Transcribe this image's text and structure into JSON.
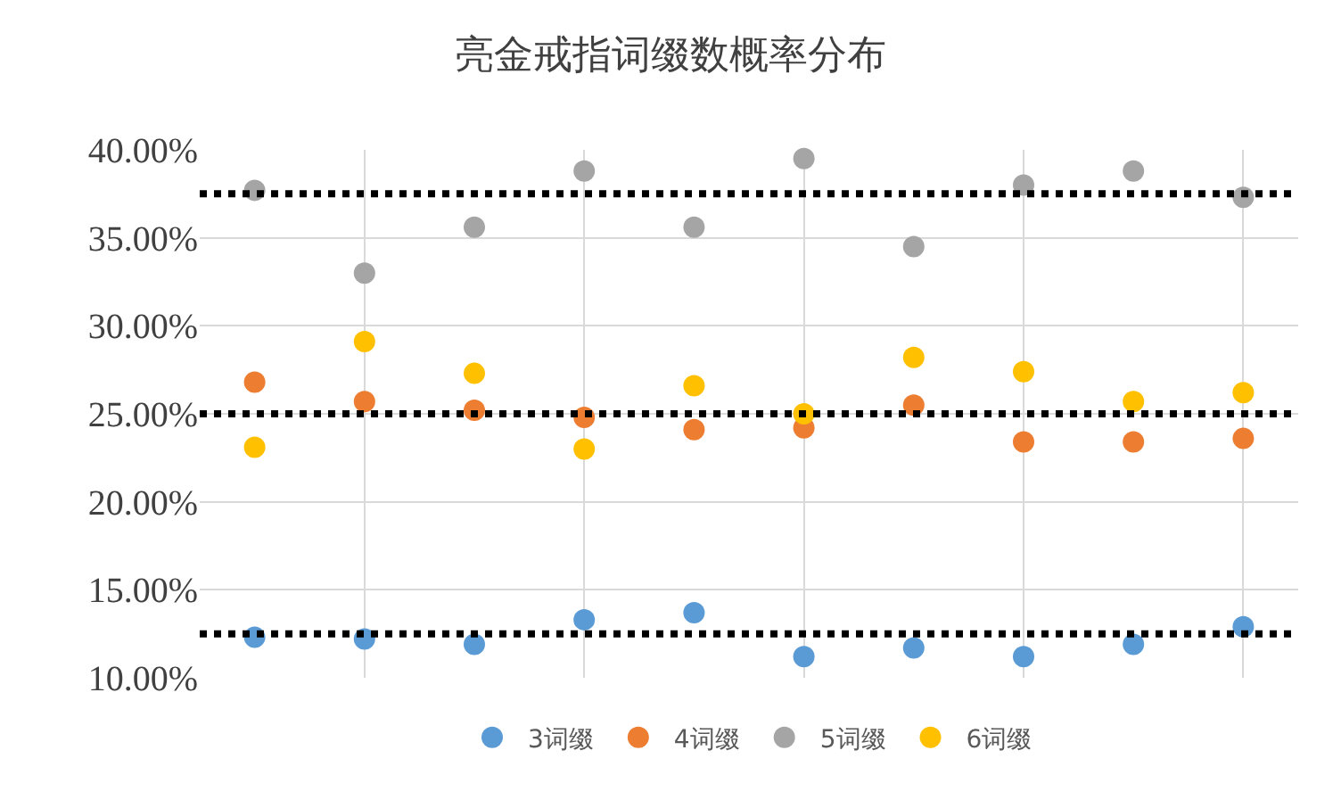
{
  "chart_data": {
    "type": "scatter",
    "title": "亮金戒指词缀数概率分布",
    "categories": [
      null,
      null,
      null,
      null,
      null,
      null,
      null,
      null,
      null,
      null
    ],
    "series": [
      {
        "name": "3词缀",
        "color": "#5b9bd5",
        "values": [
          12.3,
          12.2,
          11.9,
          13.3,
          13.7,
          11.2,
          11.7,
          11.2,
          11.9,
          12.9
        ]
      },
      {
        "name": "4词缀",
        "color": "#ed7d31",
        "values": [
          26.8,
          25.7,
          25.2,
          24.8,
          24.1,
          24.2,
          25.5,
          23.4,
          23.4,
          23.6
        ]
      },
      {
        "name": "5词缀",
        "color": "#a5a5a5",
        "values": [
          37.7,
          33.0,
          35.6,
          38.8,
          35.6,
          39.5,
          34.5,
          38.0,
          38.8,
          37.3
        ]
      },
      {
        "name": "6词缀",
        "color": "#ffc000",
        "values": [
          23.1,
          29.1,
          27.3,
          23.0,
          26.6,
          25.0,
          28.2,
          27.4,
          25.7,
          26.2
        ]
      }
    ],
    "ylim": [
      10,
      40
    ],
    "yticks": [
      {
        "value": 10,
        "label": "10.00%"
      },
      {
        "value": 15,
        "label": "15.00%"
      },
      {
        "value": 20,
        "label": "20.00%"
      },
      {
        "value": 25,
        "label": "25.00%"
      },
      {
        "value": 30,
        "label": "30.00%"
      },
      {
        "value": 35,
        "label": "35.00%"
      },
      {
        "value": 40,
        "label": "40.00%"
      }
    ],
    "tick_labels": "y",
    "ref_lines": [
      {
        "axis": "y",
        "value": 37.5,
        "color": "#000000",
        "line_style": "dotted"
      },
      {
        "axis": "y",
        "value": 25,
        "color": "#000000",
        "line_style": "dotted"
      },
      {
        "axis": "y",
        "value": 12.5,
        "color": "#000000",
        "line_style": "dotted"
      }
    ],
    "grid": true,
    "legend": "bottom",
    "marker": "circle"
  }
}
